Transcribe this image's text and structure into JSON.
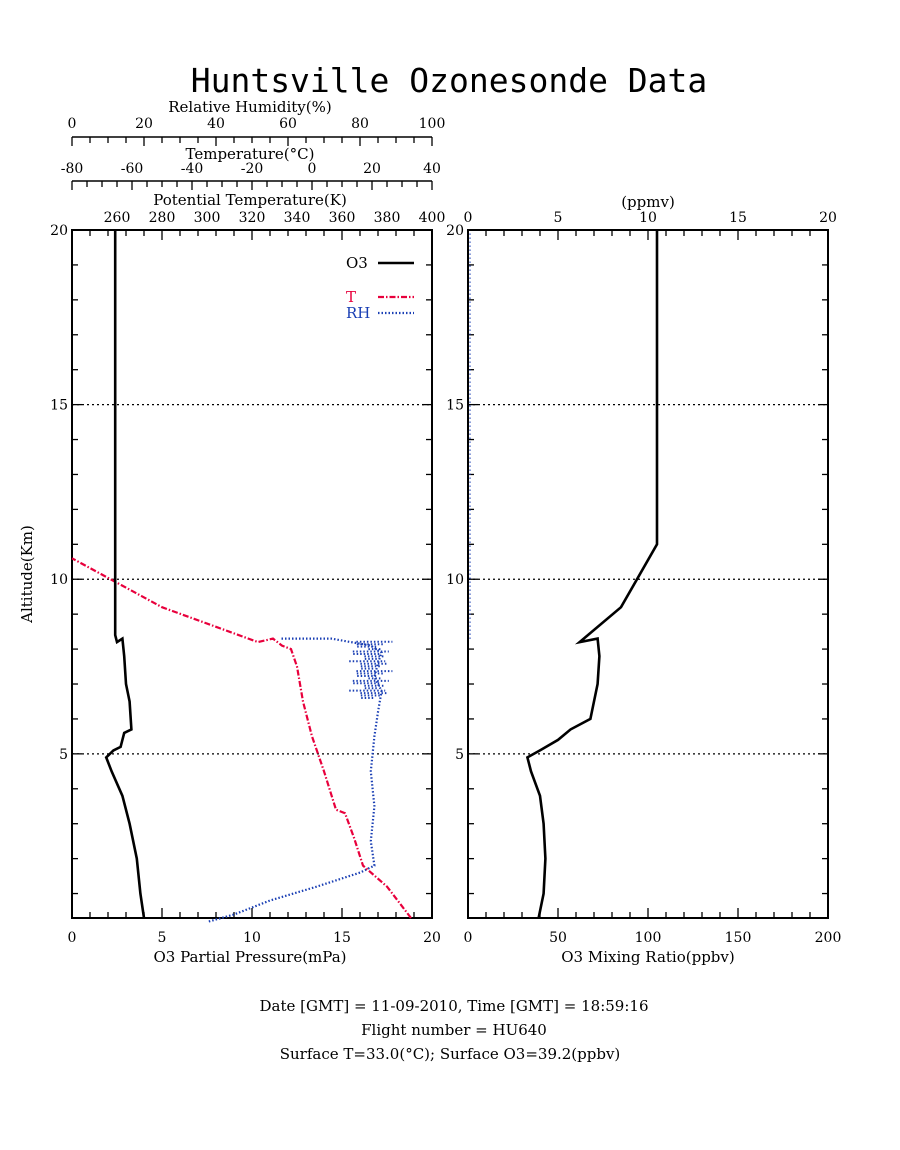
{
  "title": "Huntsville Ozonesonde Data",
  "footer": {
    "line1": "Date [GMT] = 11-09-2010,  Time [GMT] = 18:59:16",
    "line2": "Flight number = HU640",
    "line3": "Surface T=33.0(°C); Surface O3=39.2(ppbv)"
  },
  "colors": {
    "o3": "#000000",
    "temperature": "#e8003c",
    "rh": "#1a3fb4"
  },
  "chart_data": [
    {
      "type": "line",
      "ylabel": "Altitude(Km)",
      "ylim": [
        0.3,
        20
      ],
      "yticks": [
        5,
        10,
        15,
        20
      ],
      "grid_y": [
        5,
        10,
        15
      ],
      "axes": {
        "o3_partial_pressure": {
          "label": "O3 Partial Pressure(mPa)",
          "range": [
            0,
            20
          ],
          "ticks": [
            0,
            5,
            10,
            15,
            20
          ]
        },
        "relative_humidity": {
          "label": "Relative Humidity(%)",
          "range": [
            0,
            100
          ],
          "ticks": [
            0,
            20,
            40,
            60,
            80,
            100
          ]
        },
        "temperature": {
          "label": "Temperature(°C)",
          "range": [
            -80,
            40
          ],
          "ticks": [
            -80,
            -60,
            -40,
            -20,
            0,
            20,
            40
          ]
        },
        "potential_temperature": {
          "label": "Potential Temperature(K)",
          "range": [
            240,
            400
          ],
          "ticks": [
            260,
            280,
            300,
            320,
            340,
            360,
            380,
            400
          ]
        }
      },
      "legend": [
        {
          "name": "O3",
          "style": "solid"
        },
        {
          "name": "T",
          "style": "dash-dot"
        },
        {
          "name": "RH",
          "style": "dotted"
        }
      ],
      "legend_position": "top-right",
      "series": [
        {
          "name": "O3",
          "axis": "o3_partial_pressure",
          "points": [
            [
              4.0,
              0.3
            ],
            [
              3.8,
              1.0
            ],
            [
              3.6,
              2.0
            ],
            [
              3.2,
              3.0
            ],
            [
              2.8,
              3.8
            ],
            [
              2.2,
              4.5
            ],
            [
              1.9,
              4.9
            ],
            [
              2.3,
              5.1
            ],
            [
              2.7,
              5.2
            ],
            [
              2.9,
              5.6
            ],
            [
              3.3,
              5.7
            ],
            [
              3.2,
              6.5
            ],
            [
              3.0,
              7.0
            ],
            [
              2.9,
              7.8
            ],
            [
              2.8,
              8.3
            ],
            [
              2.5,
              8.2
            ],
            [
              2.4,
              8.4
            ],
            [
              2.4,
              20.0
            ]
          ]
        },
        {
          "name": "T",
          "axis": "temperature",
          "points": [
            [
              33.0,
              0.3
            ],
            [
              25,
              1.2
            ],
            [
              17,
              1.8
            ],
            [
              14,
              2.6
            ],
            [
              11,
              3.3
            ],
            [
              8,
              3.4
            ],
            [
              4,
              4.5
            ],
            [
              0,
              5.5
            ],
            [
              -3,
              6.5
            ],
            [
              -5,
              7.5
            ],
            [
              -7,
              8.0
            ],
            [
              -10,
              8.1
            ],
            [
              -13,
              8.3
            ],
            [
              -18,
              8.2
            ],
            [
              -50,
              9.2
            ],
            [
              -80,
              10.6
            ]
          ]
        },
        {
          "name": "RH",
          "axis": "relative_humidity",
          "points": [
            [
              38,
              0.2
            ],
            [
              45,
              0.4
            ],
            [
              55,
              0.8
            ],
            [
              68,
              1.2
            ],
            [
              80,
              1.6
            ],
            [
              84,
              1.8
            ],
            [
              83,
              2.5
            ],
            [
              84,
              3.5
            ],
            [
              83,
              4.5
            ],
            [
              84,
              5.5
            ],
            [
              85,
              6.2
            ],
            [
              86,
              6.8
            ],
            [
              84,
              7.2
            ],
            [
              85,
              7.6
            ],
            [
              86,
              7.9
            ],
            [
              83,
              8.1
            ],
            [
              72,
              8.3
            ],
            [
              58,
              8.3
            ]
          ]
        }
      ]
    },
    {
      "type": "line",
      "xlabel": "O3 Mixing Ratio(ppbv)",
      "top_axis": {
        "label": "(ppmv)",
        "range": [
          0,
          20
        ],
        "ticks": [
          0,
          5,
          10,
          15,
          20
        ]
      },
      "xlim": [
        0,
        200
      ],
      "xticks": [
        0,
        50,
        100,
        150,
        200
      ],
      "ylim": [
        0.3,
        20
      ],
      "yticks": [
        5,
        10,
        15,
        20
      ],
      "grid_y": [
        5,
        10,
        15
      ],
      "series": [
        {
          "name": "O3 mixing ratio",
          "points": [
            [
              39.2,
              0.3
            ],
            [
              42,
              1.0
            ],
            [
              43,
              2.0
            ],
            [
              42,
              3.0
            ],
            [
              40,
              3.8
            ],
            [
              35,
              4.5
            ],
            [
              33,
              4.9
            ],
            [
              40,
              5.1
            ],
            [
              50,
              5.4
            ],
            [
              57,
              5.7
            ],
            [
              68,
              6.0
            ],
            [
              72,
              7.0
            ],
            [
              73,
              7.8
            ],
            [
              72,
              8.3
            ],
            [
              62,
              8.2
            ],
            [
              85,
              9.2
            ],
            [
              105,
              11.0
            ],
            [
              105,
              20.0
            ]
          ]
        }
      ]
    }
  ]
}
